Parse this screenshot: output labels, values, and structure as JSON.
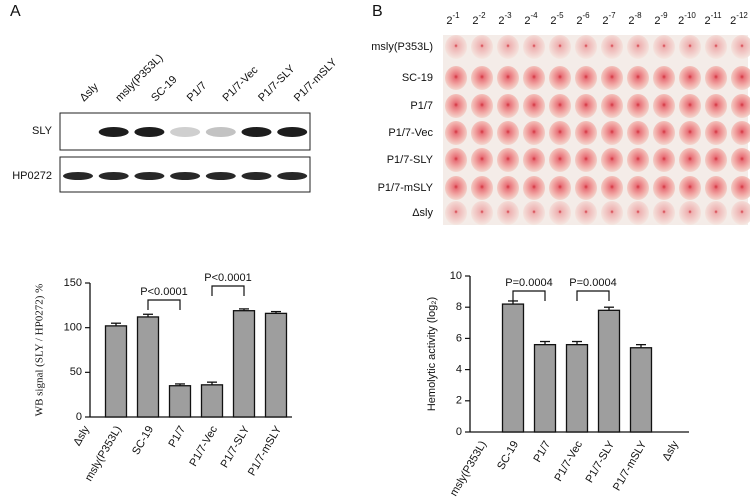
{
  "panel_labels": [
    "A",
    "B"
  ],
  "blot": {
    "lanes": [
      "Δsly",
      "msly(P353L)",
      "SC-19",
      "P1/7",
      "P1/7-Vec",
      "P1/7-SLY",
      "P1/7-mSLY"
    ],
    "rows": [
      "SLY",
      "HP0272"
    ]
  },
  "plate": {
    "dilution_base": "2",
    "dilution_exponents": [
      "-1",
      "-2",
      "-3",
      "-4",
      "-5",
      "-6",
      "-7",
      "-8",
      "-9",
      "-10",
      "-11",
      "-12"
    ],
    "rows": [
      "msly(P353L)",
      "SC-19",
      "P1/7",
      "P1/7-Vec",
      "P1/7-SLY",
      "P1/7-mSLY",
      "Δsly"
    ]
  },
  "chart_data": [
    {
      "type": "bar",
      "ylabel": "WB signal (SLY / HP0272) %",
      "categories": [
        "Δsly",
        "msly(P353L)",
        "SC-19",
        "P1/7",
        "P1/7-Vec",
        "P1/7-SLY",
        "P1/7-mSLY"
      ],
      "values": [
        0,
        102,
        112,
        35,
        36,
        119,
        116
      ],
      "errors": [
        0,
        3,
        3,
        2,
        3,
        2,
        2
      ],
      "color": "#9e9e9e",
      "ylim": [
        0,
        150
      ],
      "yticks": [
        0,
        50,
        100,
        150
      ],
      "annotations": [
        "P<0.0001",
        "P<0.0001"
      ]
    },
    {
      "type": "bar",
      "ylabel": "Hemolytic activity  (log₂)",
      "categories": [
        "msly(P353L)",
        "SC-19",
        "P1/7",
        "P1/7-Vec",
        "P1/7-SLY",
        "P1/7-mSLY",
        "Δsly"
      ],
      "values": [
        0,
        8.2,
        5.6,
        5.6,
        7.8,
        5.4,
        0
      ],
      "errors": [
        0,
        0.2,
        0.2,
        0.2,
        0.2,
        0.2,
        0
      ],
      "color": "#9e9e9e",
      "ylim": [
        0,
        10
      ],
      "yticks": [
        0,
        2,
        4,
        6,
        8,
        10
      ],
      "annotations": [
        "P=0.0004",
        "P=0.0004"
      ]
    }
  ]
}
